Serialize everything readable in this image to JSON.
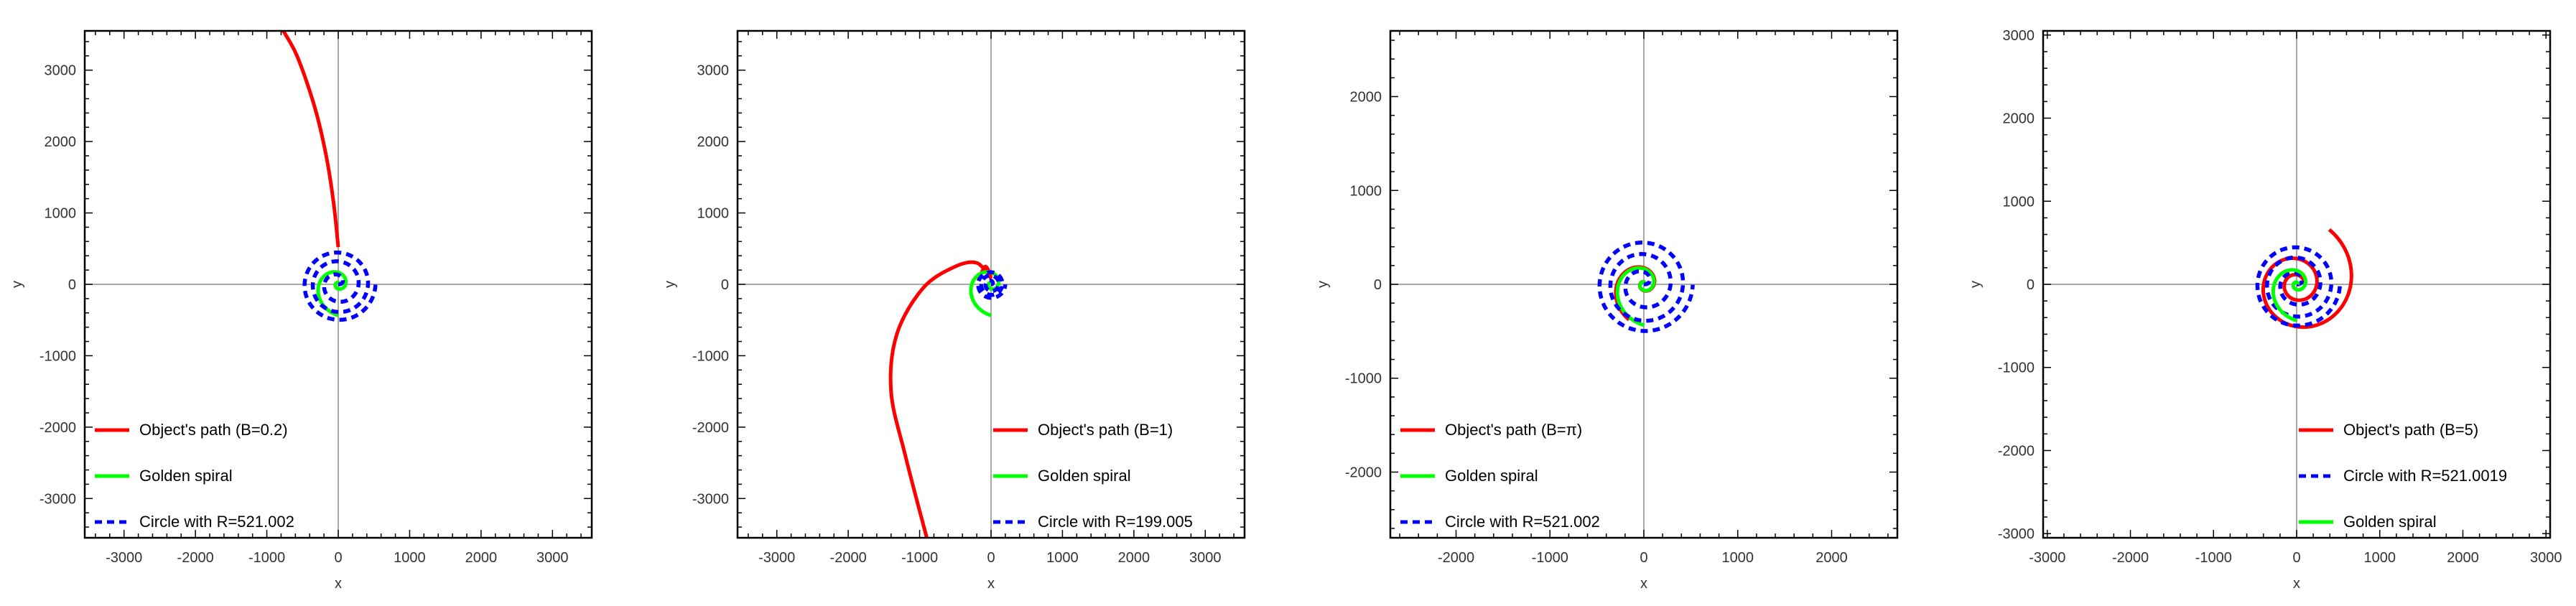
{
  "chart_data": [
    {
      "type": "line",
      "xlabel": "x",
      "ylabel": "y",
      "xlim": [
        -3550,
        3550
      ],
      "ylim": [
        -3550,
        3550
      ],
      "xticks": [
        -3000,
        -2000,
        -1000,
        0,
        1000,
        2000,
        3000
      ],
      "yticks": [
        -3000,
        -2000,
        -1000,
        0,
        1000,
        2000,
        3000
      ],
      "grid": false,
      "legend_position": "bottom-left",
      "legend": [
        "Object's path (B=0.2)",
        "Golden spiral",
        "Circle with R=521.002"
      ],
      "series": [
        {
          "name": "Object's path (B=0.2)",
          "color": "#ff0000",
          "style": "solid",
          "x": [
            0,
            -60,
            -150,
            -280,
            -430,
            -600,
            -800
          ],
          "y": [
            521,
            1100,
            1700,
            2300,
            2800,
            3250,
            3600
          ]
        },
        {
          "name": "Golden spiral",
          "color": "#00ff00",
          "style": "solid",
          "kind": "golden-spiral",
          "a": 15,
          "theta_max": 11.0
        },
        {
          "name": "Circle with R=521.002",
          "color": "#0000ff",
          "style": "dashed",
          "kind": "circle-spiral",
          "R": 521.002,
          "turns": 3
        }
      ]
    },
    {
      "type": "line",
      "xlabel": "x",
      "ylabel": "y",
      "xlim": [
        -3550,
        3550
      ],
      "ylim": [
        -3550,
        3550
      ],
      "xticks": [
        -3000,
        -2000,
        -1000,
        0,
        1000,
        2000,
        3000
      ],
      "yticks": [
        -3000,
        -2000,
        -1000,
        0,
        1000,
        2000,
        3000
      ],
      "grid": false,
      "legend_position": "bottom-right",
      "legend": [
        "Object's path (B=1)",
        "Golden spiral",
        "Circle with R=199.005"
      ],
      "series": [
        {
          "name": "Object's path (B=1)",
          "color": "#ff0000",
          "style": "solid",
          "x": [
            -180,
            -80,
            -10,
            -200,
            -500,
            -950,
            -1320,
            -1400,
            -1200,
            -900
          ],
          "y": [
            50,
            250,
            100,
            300,
            250,
            -50,
            -700,
            -1500,
            -2400,
            -3550
          ]
        },
        {
          "name": "Golden spiral",
          "color": "#00ff00",
          "style": "solid",
          "kind": "golden-spiral",
          "a": 15,
          "theta_max": 11.0
        },
        {
          "name": "Circle with R=199.005",
          "color": "#0000ff",
          "style": "dashed",
          "kind": "circle-spiral",
          "R": 199.005,
          "turns": 3
        }
      ]
    },
    {
      "type": "line",
      "xlabel": "x",
      "ylabel": "y",
      "xlim": [
        -2700,
        2700
      ],
      "ylim": [
        -2700,
        2700
      ],
      "xticks": [
        -2000,
        -1000,
        0,
        1000,
        2000
      ],
      "yticks": [
        -2000,
        -1000,
        0,
        1000,
        2000
      ],
      "grid": false,
      "legend_position": "bottom-left",
      "legend": [
        "Object's path (B=π)",
        "Golden spiral",
        "Circle with R=521.002"
      ],
      "series": [
        {
          "name": "Object's path (B=π)",
          "color": "#ff0000",
          "style": "solid",
          "kind": "scaled-golden-spiral",
          "a": 15,
          "theta_max": 10.6,
          "scale": 1.06
        },
        {
          "name": "Golden spiral",
          "color": "#00ff00",
          "style": "solid",
          "kind": "golden-spiral",
          "a": 15,
          "theta_max": 11.0
        },
        {
          "name": "Circle with R=521.002",
          "color": "#0000ff",
          "style": "dashed",
          "kind": "circle-spiral",
          "R": 521.002,
          "turns": 3
        }
      ]
    },
    {
      "type": "line",
      "xlabel": "x",
      "ylabel": "y",
      "xlim": [
        -3050,
        3050
      ],
      "ylim": [
        -3050,
        3050
      ],
      "xticks": [
        -3000,
        -2000,
        -1000,
        0,
        1000,
        2000,
        3000
      ],
      "yticks": [
        -3000,
        -2000,
        -1000,
        0,
        1000,
        2000,
        3000
      ],
      "grid": false,
      "legend_position": "bottom-right",
      "legend": [
        "Object's path (B=5)",
        "Circle with R=521.0019",
        "Golden spiral"
      ],
      "series": [
        {
          "name": "Object's path (B=5)",
          "color": "#ff0000",
          "style": "solid",
          "kind": "slow-spiral",
          "a": 90,
          "k": 0.1575,
          "theta_max": 13.6
        },
        {
          "name": "Circle with R=521.0019",
          "color": "#0000ff",
          "style": "dashed",
          "kind": "circle-spiral",
          "R": 521.0019,
          "turns": 3
        },
        {
          "name": "Golden spiral",
          "color": "#00ff00",
          "style": "solid",
          "kind": "golden-spiral",
          "a": 15,
          "theta_max": 11.0
        }
      ]
    }
  ]
}
